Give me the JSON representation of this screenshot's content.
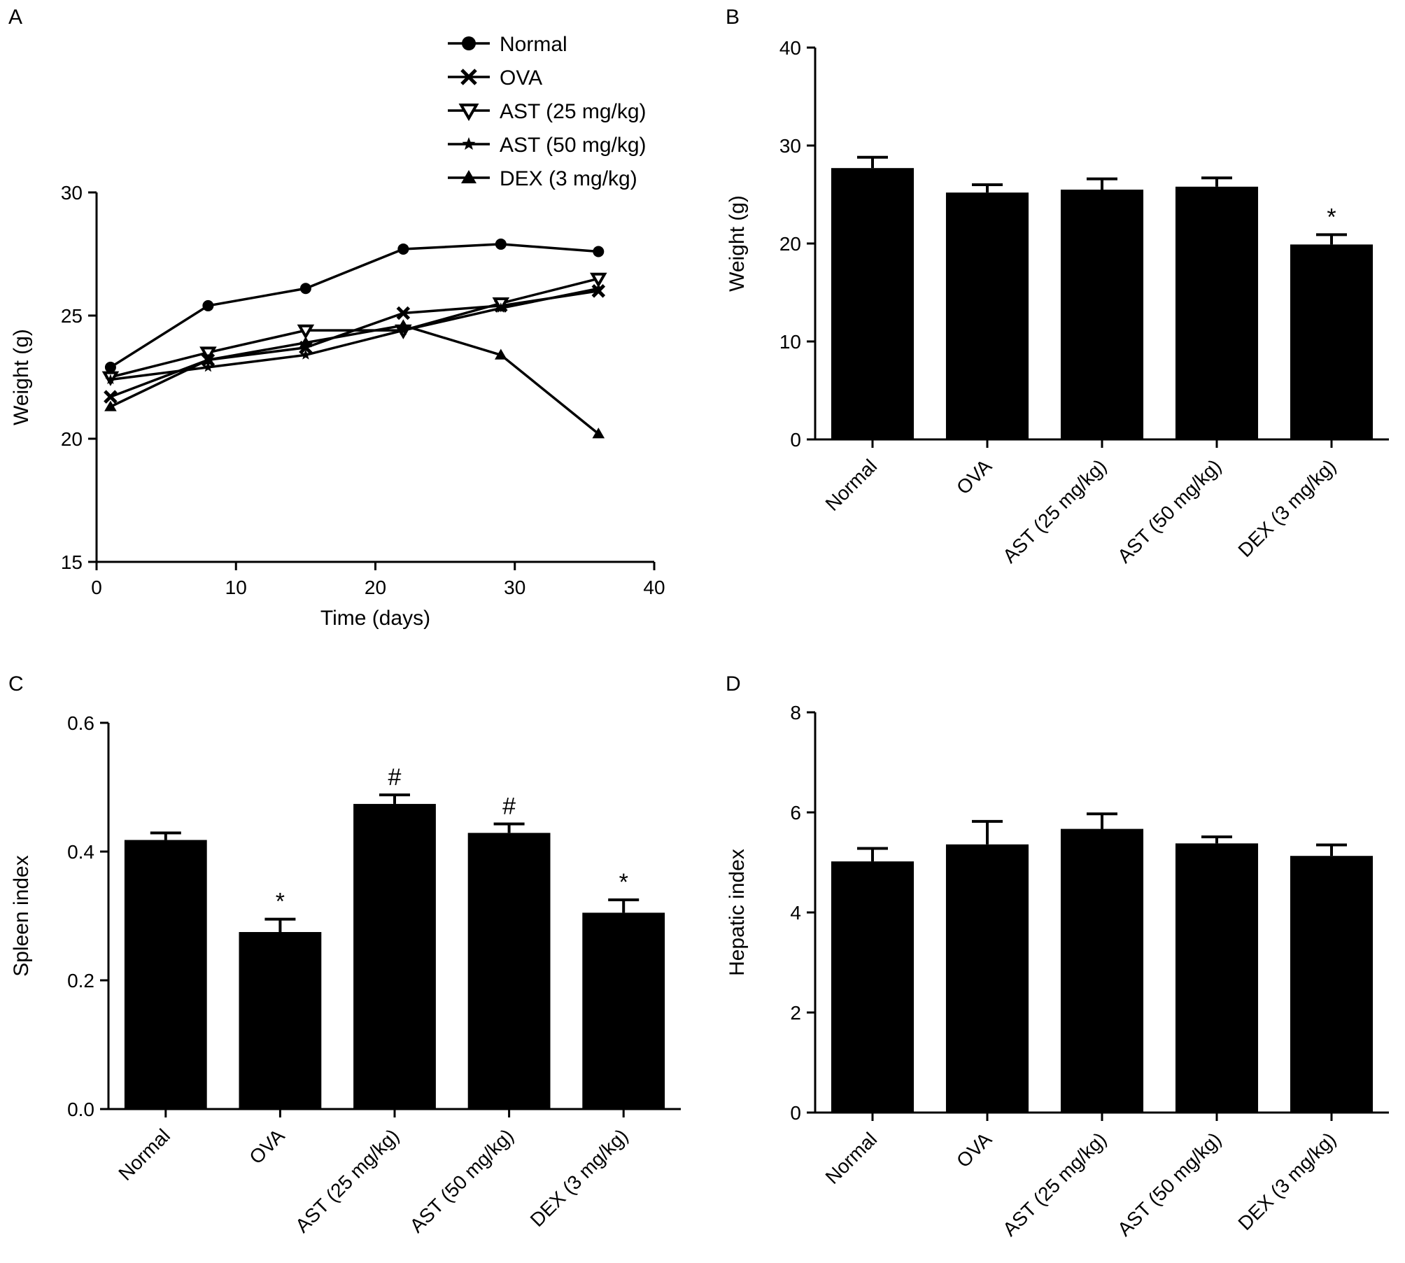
{
  "chart_data": [
    {
      "panel": "A",
      "type": "line",
      "xlabel": "Time (days)",
      "ylabel": "Weight (g)",
      "xlim": [
        0,
        40
      ],
      "ylim": [
        15,
        30
      ],
      "xticks": [
        "0",
        "10",
        "20",
        "30",
        "40"
      ],
      "yticks": [
        "15",
        "20",
        "25",
        "30"
      ],
      "x": [
        1,
        8,
        15,
        22,
        29,
        36
      ],
      "legend": "top-right",
      "series": [
        {
          "name": "Normal",
          "marker": "circle",
          "values": [
            22.9,
            25.4,
            26.1,
            27.7,
            27.9,
            27.6
          ]
        },
        {
          "name": "OVA",
          "marker": "x",
          "values": [
            21.7,
            23.2,
            23.7,
            25.1,
            25.4,
            26.0
          ]
        },
        {
          "name": "AST (25 mg/kg)",
          "marker": "triangle-down",
          "values": [
            22.5,
            23.5,
            24.4,
            24.4,
            25.5,
            26.5
          ]
        },
        {
          "name": "AST (50 mg/kg)",
          "marker": "star",
          "values": [
            22.4,
            22.9,
            23.4,
            24.4,
            25.3,
            26.1
          ]
        },
        {
          "name": "DEX (3 mg/kg)",
          "marker": "triangle-up",
          "values": [
            21.3,
            23.2,
            23.9,
            24.6,
            23.4,
            20.2
          ]
        }
      ]
    },
    {
      "panel": "B",
      "type": "bar",
      "xlabel": "",
      "ylabel": "Weight (g)",
      "ylim": [
        0,
        40
      ],
      "yticks": [
        "0",
        "10",
        "20",
        "30",
        "40"
      ],
      "categories": [
        "Normal",
        "OVA",
        "AST (25 mg/kg)",
        "AST (50 mg/kg)",
        "DEX (3 mg/kg)"
      ],
      "values": [
        27.7,
        25.2,
        25.5,
        25.8,
        19.9
      ],
      "errors": [
        1.1,
        0.8,
        1.1,
        0.9,
        1.0
      ],
      "annotations": [
        "",
        "",
        "",
        "",
        "*"
      ]
    },
    {
      "panel": "C",
      "type": "bar",
      "xlabel": "",
      "ylabel": "Spleen index",
      "ylim": [
        0,
        0.6
      ],
      "yticks": [
        "0.0",
        "0.2",
        "0.4",
        "0.6"
      ],
      "categories": [
        "Normal",
        "OVA",
        "AST (25 mg/kg)",
        "AST (50 mg/kg)",
        "DEX (3 mg/kg)"
      ],
      "values": [
        0.418,
        0.275,
        0.474,
        0.429,
        0.305
      ],
      "errors": [
        0.011,
        0.02,
        0.014,
        0.014,
        0.02
      ],
      "annotations": [
        "",
        "*",
        "#",
        "#",
        "*"
      ]
    },
    {
      "panel": "D",
      "type": "bar",
      "xlabel": "",
      "ylabel": "Hepatic index",
      "ylim": [
        0,
        8
      ],
      "yticks": [
        "0",
        "2",
        "4",
        "6",
        "8"
      ],
      "categories": [
        "Normal",
        "OVA",
        "AST (25 mg/kg)",
        "AST (50 mg/kg)",
        "DEX (3 mg/kg)"
      ],
      "values": [
        5.02,
        5.36,
        5.67,
        5.38,
        5.13
      ],
      "errors": [
        0.26,
        0.46,
        0.3,
        0.13,
        0.22
      ],
      "annotations": [
        "",
        "",
        "",
        "",
        ""
      ]
    }
  ]
}
